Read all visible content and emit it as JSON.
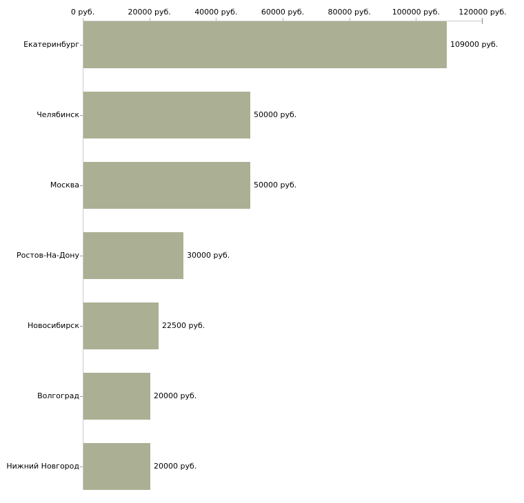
{
  "chart_data": {
    "type": "bar",
    "orientation": "horizontal",
    "title": "",
    "xlabel": "",
    "ylabel": "",
    "xlim": [
      0,
      120000
    ],
    "grid": false,
    "legend": false,
    "x_axis_position": "top",
    "x_tick_labels": [
      "0 руб.",
      "20000 руб.",
      "40000 руб.",
      "60000 руб.",
      "80000 руб.",
      "100000 руб.",
      "120000 руб."
    ],
    "categories": [
      "Екатеринбург",
      "Челябинск",
      "Москва",
      "Ростов-На-Дону",
      "Новосибирск",
      "Волгоград",
      "Нижний Новгород"
    ],
    "values": [
      109000,
      50000,
      50000,
      30000,
      22500,
      20000,
      20000
    ],
    "value_labels": [
      "109000 руб.",
      "50000 руб.",
      "50000 руб.",
      "30000 руб.",
      "22500 руб.",
      "20000 руб.",
      "20000 руб."
    ],
    "bar_color": "#abb094",
    "axis_color": "#c9c9c9",
    "tick_color": "#b6b6a6",
    "end_tick_color": "#8c8c8c",
    "text_color": "#000000"
  }
}
